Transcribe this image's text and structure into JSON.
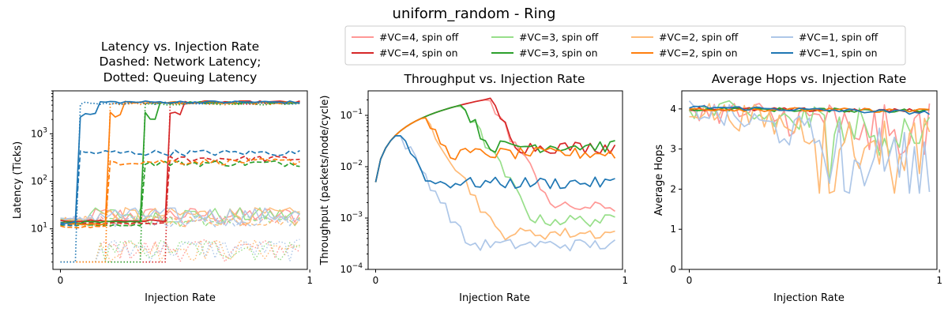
{
  "figure": {
    "suptitle": "uniform_random - Ring"
  },
  "legend": {
    "placement": "top-center",
    "entries": [
      {
        "label": "#VC=4, spin off",
        "color": "#ff9896"
      },
      {
        "label": "#VC=4, spin on",
        "color": "#d62728"
      },
      {
        "label": "#VC=3, spin off",
        "color": "#98df8a"
      },
      {
        "label": "#VC=3, spin on",
        "color": "#2ca02c"
      },
      {
        "label": "#VC=2, spin off",
        "color": "#ffbb78"
      },
      {
        "label": "#VC=2, spin on",
        "color": "#ff7f0e"
      },
      {
        "label": "#VC=1, spin off",
        "color": "#aec7e8"
      },
      {
        "label": "#VC=1, spin on",
        "color": "#1f77b4"
      }
    ]
  },
  "chart_data": [
    {
      "type": "line",
      "title_lines": [
        "Latency vs. Injection Rate",
        "Dashed: Network Latency;",
        "Dotted: Queuing Latency"
      ],
      "xlabel": "Injection Rate",
      "ylabel": "Latency (Ticks)",
      "xscale": "linear",
      "yscale": "log",
      "xlim": [
        -0.03,
        0.99
      ],
      "ylim": [
        1.4,
        8000
      ],
      "x_ticks": [
        {
          "v": 0,
          "label": "0"
        },
        {
          "v": 1,
          "label": "1"
        }
      ],
      "y_ticks": [
        {
          "v": 10,
          "label": "10^1"
        },
        {
          "v": 100,
          "label": "10^2"
        },
        {
          "v": 1000,
          "label": "10^3"
        }
      ],
      "grid": false,
      "series_groups": [
        {
          "group": "#VC=4, spin on",
          "color": "#d62728",
          "saturation_point": 0.45,
          "total_high": 4600,
          "network_high": 300,
          "low": 14
        },
        {
          "group": "#VC=3, spin on",
          "color": "#2ca02c",
          "saturation_point": 0.35,
          "total_high": 4500,
          "network_high": 240,
          "low": 13
        },
        {
          "group": "#VC=2, spin on",
          "color": "#ff7f0e",
          "saturation_point": 0.2,
          "total_high": 4500,
          "network_high": 260,
          "low": 12
        },
        {
          "group": "#VC=1, spin on",
          "color": "#1f77b4",
          "saturation_point": 0.1,
          "total_high": 4600,
          "network_high": 400,
          "low": 13
        },
        {
          "group": "spin off (all #VC)",
          "colors": [
            "#ff9896",
            "#98df8a",
            "#ffbb78",
            "#aec7e8"
          ],
          "total_range": [
            10,
            30
          ],
          "queuing_range": [
            2,
            7
          ]
        }
      ]
    },
    {
      "type": "line",
      "title": "Throughput vs. Injection Rate",
      "xlabel": "Injection Rate",
      "ylabel": "Throughput (packets/node/cycle)",
      "xscale": "linear",
      "yscale": "log",
      "xlim": [
        -0.03,
        0.99
      ],
      "ylim": [
        0.0001,
        0.3
      ],
      "x_ticks": [
        {
          "v": 0,
          "label": "0"
        },
        {
          "v": 1,
          "label": "1"
        }
      ],
      "y_ticks": [
        {
          "v": 0.0001,
          "label": "10^-4"
        },
        {
          "v": 0.001,
          "label": "10^-3"
        },
        {
          "v": 0.01,
          "label": "10^-2"
        },
        {
          "v": 0.1,
          "label": "10^-1"
        }
      ],
      "grid": false,
      "series": [
        {
          "name": "#VC=4, spin off",
          "color": "#ff9896",
          "peak_x": 0.45,
          "peak_y": 0.2,
          "final_level": 0.0016
        },
        {
          "name": "#VC=4, spin on",
          "color": "#d62728",
          "peak_x": 0.45,
          "peak_y": 0.22,
          "final_level": 0.024
        },
        {
          "name": "#VC=3, spin off",
          "color": "#98df8a",
          "peak_x": 0.35,
          "peak_y": 0.15,
          "final_level": 0.0009
        },
        {
          "name": "#VC=3, spin on",
          "color": "#2ca02c",
          "peak_x": 0.35,
          "peak_y": 0.16,
          "final_level": 0.025
        },
        {
          "name": "#VC=2, spin off",
          "color": "#ffbb78",
          "peak_x": 0.2,
          "peak_y": 0.09,
          "final_level": 0.0005
        },
        {
          "name": "#VC=2, spin on",
          "color": "#ff7f0e",
          "peak_x": 0.2,
          "peak_y": 0.09,
          "final_level": 0.018
        },
        {
          "name": "#VC=1, spin off",
          "color": "#aec7e8",
          "peak_x": 0.1,
          "peak_y": 0.04,
          "final_level": 0.0003
        },
        {
          "name": "#VC=1, spin on",
          "color": "#1f77b4",
          "peak_x": 0.1,
          "peak_y": 0.04,
          "final_level": 0.0048
        }
      ]
    },
    {
      "type": "line",
      "title": "Average Hops vs. Injection Rate",
      "xlabel": "Injection Rate",
      "ylabel": "Average Hops",
      "xscale": "linear",
      "yscale": "linear",
      "xlim": [
        -0.03,
        0.99
      ],
      "ylim": [
        0,
        4.45
      ],
      "x_ticks": [
        {
          "v": 0,
          "label": "0"
        },
        {
          "v": 1,
          "label": "1"
        }
      ],
      "y_ticks": [
        {
          "v": 0,
          "label": "0"
        },
        {
          "v": 1,
          "label": "1"
        },
        {
          "v": 2,
          "label": "2"
        },
        {
          "v": 3,
          "label": "3"
        },
        {
          "v": 4,
          "label": "4"
        }
      ],
      "grid": false,
      "series": [
        {
          "name": "#VC=4, spin off",
          "color": "#ff9896",
          "level_start": 4.0,
          "level_end": 3.4
        },
        {
          "name": "#VC=4, spin on",
          "color": "#d62728",
          "level_start": 4.0,
          "level_end": 3.95
        },
        {
          "name": "#VC=3, spin off",
          "color": "#98df8a",
          "level_start": 4.0,
          "level_end": 3.3
        },
        {
          "name": "#VC=3, spin on",
          "color": "#2ca02c",
          "level_start": 4.0,
          "level_end": 3.95
        },
        {
          "name": "#VC=2, spin off",
          "color": "#ffbb78",
          "level_start": 4.0,
          "level_end": 3.0
        },
        {
          "name": "#VC=2, spin on",
          "color": "#ff7f0e",
          "level_start": 4.0,
          "level_end": 3.95
        },
        {
          "name": "#VC=1, spin off",
          "color": "#aec7e8",
          "level_start": 4.0,
          "level_end": 2.6
        },
        {
          "name": "#VC=1, spin on",
          "color": "#1f77b4",
          "level_start": 4.05,
          "level_end": 3.9
        }
      ]
    }
  ]
}
